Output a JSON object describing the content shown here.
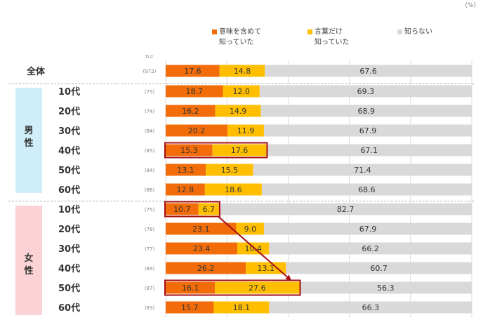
{
  "unit": "(%)",
  "legend": [
    {
      "line1": "意味を含めて",
      "line2": "知っていた",
      "color": "#f26c0a"
    },
    {
      "line1": "言葉だけ",
      "line2": "知っていた",
      "color": "#ffbf00"
    },
    {
      "line1": "知らない",
      "line2": "",
      "color": "#d9d9d9"
    }
  ],
  "n_label": "n=",
  "groups": {
    "male": "男\n性",
    "female": "女\n性"
  },
  "chart_data": {
    "type": "bar",
    "orientation": "horizontal-stacked-100",
    "xlim": [
      0,
      100
    ],
    "series": [
      {
        "name": "意味を含めて知っていた",
        "color": "#f26c0a",
        "values": [
          17.6,
          18.7,
          16.2,
          20.2,
          15.3,
          13.1,
          12.8,
          10.7,
          23.1,
          23.4,
          26.2,
          16.1,
          15.7
        ]
      },
      {
        "name": "言葉だけ知っていた",
        "color": "#ffbf00",
        "values": [
          14.8,
          12.0,
          14.9,
          11.9,
          17.6,
          15.5,
          18.6,
          6.7,
          9.0,
          10.4,
          13.1,
          27.6,
          18.1
        ]
      },
      {
        "name": "知らない",
        "color": "#d9d9d9",
        "values": [
          67.6,
          69.3,
          68.9,
          67.9,
          67.1,
          71.4,
          68.6,
          82.7,
          67.9,
          66.2,
          60.7,
          56.3,
          66.3
        ]
      }
    ],
    "rows": [
      {
        "label": "全体",
        "n": "(972)",
        "group": "all"
      },
      {
        "label": "10代",
        "n": "(75)",
        "group": "male"
      },
      {
        "label": "20代",
        "n": "(74)",
        "group": "male"
      },
      {
        "label": "30代",
        "n": "(84)",
        "group": "male"
      },
      {
        "label": "40代",
        "n": "(85)",
        "group": "male"
      },
      {
        "label": "50代",
        "n": "(84)",
        "group": "male"
      },
      {
        "label": "60代",
        "n": "(86)",
        "group": "male"
      },
      {
        "label": "10代",
        "n": "(75)",
        "group": "female"
      },
      {
        "label": "20代",
        "n": "(78)",
        "group": "female"
      },
      {
        "label": "30代",
        "n": "(77)",
        "group": "female"
      },
      {
        "label": "40代",
        "n": "(84)",
        "group": "female"
      },
      {
        "label": "50代",
        "n": "(87)",
        "group": "female"
      },
      {
        "label": "60代",
        "n": "(83)",
        "group": "female"
      }
    ],
    "highlights": [
      {
        "row": 4,
        "segments": [
          0,
          1
        ]
      },
      {
        "row": 7,
        "segments": [
          0,
          1
        ]
      },
      {
        "row": 11,
        "segments": [
          0,
          1
        ]
      }
    ],
    "arrow": {
      "from_row": 7,
      "to_row": 11
    }
  }
}
